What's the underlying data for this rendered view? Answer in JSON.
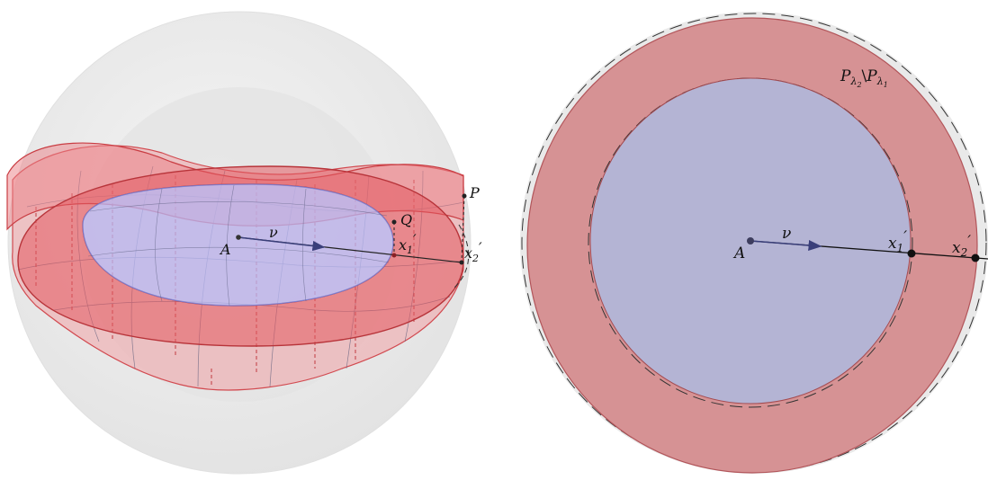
{
  "left_panel": {
    "labels": {
      "center": "A",
      "vector": "ν",
      "point_p": "P",
      "point_q": "Q",
      "x1_base": "x",
      "x1_sub": "1",
      "x1_prime": "′",
      "x2_base": "x",
      "x2_sub": "2",
      "x2_prime": "′"
    },
    "colors": {
      "red_surface": "#e8474c",
      "blue_disk": "#9b9ff0",
      "sphere": "#d8d8d8"
    }
  },
  "right_panel": {
    "labels": {
      "center": "A",
      "vector": "ν",
      "x1_base": "x",
      "x1_sub": "1",
      "x1_prime": "′",
      "x2_base": "x",
      "x2_sub": "2",
      "x2_prime": "′",
      "set_p": "P",
      "set_lambda": "λ",
      "set_sub2": "2",
      "set_sep": "\\",
      "set_sub1": "1"
    },
    "colors": {
      "annulus": "#d69294",
      "disk": "#b4b4d4",
      "background_ring": "#e9e9e9"
    }
  }
}
